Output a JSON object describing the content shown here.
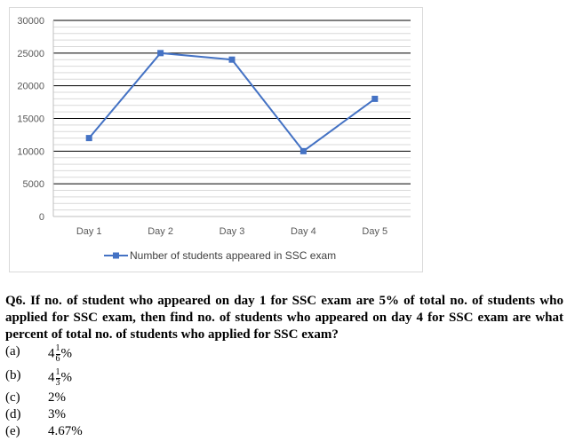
{
  "chart_data": {
    "type": "line",
    "title": "",
    "xlabel": "",
    "ylabel": "",
    "categories": [
      "Day 1",
      "Day 2",
      "Day 3",
      "Day 4",
      "Day 5"
    ],
    "series": [
      {
        "name": "Number of students appeared in SSC exam",
        "values": [
          12000,
          25000,
          24000,
          10000,
          18000
        ]
      }
    ],
    "ylim": [
      0,
      30000
    ],
    "yticks": [
      "0",
      "5000",
      "10000",
      "15000",
      "20000",
      "25000",
      "30000"
    ],
    "grid": true,
    "legend_position": "bottom",
    "series_color": "#4472c4"
  },
  "question": {
    "text": "Q6. If no. of student who appeared on day 1 for SSC exam are 5% of total no. of students who applied for SSC exam, then find no. of students who appeared on day 4 for SSC exam are what percent of total no. of students who applied for SSC exam?"
  },
  "options": [
    {
      "label": "(a)",
      "whole": "4",
      "num": "1",
      "den": "6",
      "suffix": "%"
    },
    {
      "label": "(b)",
      "whole": "4",
      "num": "1",
      "den": "3",
      "suffix": "%"
    },
    {
      "label": "(c)",
      "value": "2%"
    },
    {
      "label": "(d)",
      "value": "3%"
    },
    {
      "label": "(e)",
      "value": "4.67%"
    }
  ]
}
